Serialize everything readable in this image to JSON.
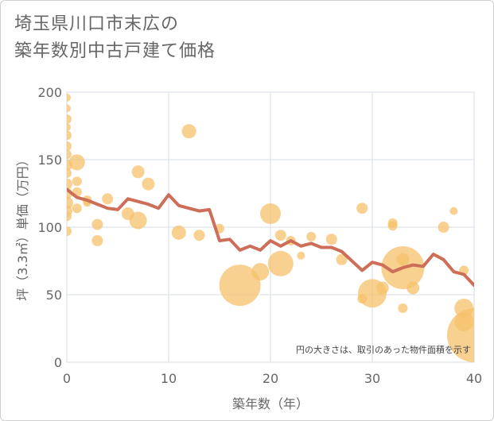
{
  "title_lines": [
    "埼玉県川口市末広の",
    "築年数別中古戸建て価格"
  ],
  "chart_data": {
    "type": "scatter",
    "title": "埼玉県川口市末広の築年数別中古戸建て価格",
    "xlabel": "築年数（年）",
    "ylabel": "坪（3.3㎡）単価（万円）",
    "xlim": [
      0,
      40
    ],
    "ylim": [
      0,
      200
    ],
    "x_ticks": [
      0,
      10,
      20,
      30,
      40
    ],
    "y_ticks": [
      0,
      50,
      100,
      150,
      200
    ],
    "grid": true,
    "annotation": "円の大きさは、取引のあった物件面積を示す",
    "bubble_color": "#f5c16c",
    "line_color": "#cd6e58",
    "points": [
      {
        "x": 0,
        "y": 196,
        "s": 5
      },
      {
        "x": 0,
        "y": 188,
        "s": 5
      },
      {
        "x": 0,
        "y": 180,
        "s": 6
      },
      {
        "x": 0,
        "y": 174,
        "s": 5
      },
      {
        "x": 0,
        "y": 168,
        "s": 6
      },
      {
        "x": 0,
        "y": 160,
        "s": 6
      },
      {
        "x": 0,
        "y": 154,
        "s": 6
      },
      {
        "x": 0,
        "y": 146,
        "s": 7
      },
      {
        "x": 0,
        "y": 140,
        "s": 6
      },
      {
        "x": 0,
        "y": 132,
        "s": 7
      },
      {
        "x": 0,
        "y": 125,
        "s": 7
      },
      {
        "x": 0,
        "y": 118,
        "s": 8
      },
      {
        "x": 0,
        "y": 112,
        "s": 7
      },
      {
        "x": 0,
        "y": 108,
        "s": 6
      },
      {
        "x": 0,
        "y": 97,
        "s": 6
      },
      {
        "x": 1,
        "y": 148,
        "s": 10
      },
      {
        "x": 1,
        "y": 134,
        "s": 6
      },
      {
        "x": 1,
        "y": 126,
        "s": 6
      },
      {
        "x": 1,
        "y": 114,
        "s": 6
      },
      {
        "x": 2,
        "y": 120,
        "s": 6
      },
      {
        "x": 2,
        "y": 118,
        "s": 5
      },
      {
        "x": 3,
        "y": 102,
        "s": 7
      },
      {
        "x": 3,
        "y": 90,
        "s": 7
      },
      {
        "x": 4,
        "y": 121,
        "s": 7
      },
      {
        "x": 6,
        "y": 110,
        "s": 8
      },
      {
        "x": 7,
        "y": 141,
        "s": 8
      },
      {
        "x": 7,
        "y": 105,
        "s": 11
      },
      {
        "x": 8,
        "y": 132,
        "s": 8
      },
      {
        "x": 11,
        "y": 96,
        "s": 9
      },
      {
        "x": 12,
        "y": 171,
        "s": 9
      },
      {
        "x": 13,
        "y": 94,
        "s": 7
      },
      {
        "x": 15,
        "y": 99,
        "s": 6
      },
      {
        "x": 17,
        "y": 57,
        "s": 26
      },
      {
        "x": 19,
        "y": 67,
        "s": 11
      },
      {
        "x": 20,
        "y": 110,
        "s": 13
      },
      {
        "x": 21,
        "y": 94,
        "s": 7
      },
      {
        "x": 21,
        "y": 73,
        "s": 16
      },
      {
        "x": 22,
        "y": 90,
        "s": 6
      },
      {
        "x": 23,
        "y": 79,
        "s": 5
      },
      {
        "x": 24,
        "y": 93,
        "s": 6
      },
      {
        "x": 26,
        "y": 91,
        "s": 7
      },
      {
        "x": 27,
        "y": 76,
        "s": 7
      },
      {
        "x": 29,
        "y": 114,
        "s": 7
      },
      {
        "x": 29,
        "y": 47,
        "s": 6
      },
      {
        "x": 30,
        "y": 51,
        "s": 18
      },
      {
        "x": 31,
        "y": 55,
        "s": 8
      },
      {
        "x": 32,
        "y": 103,
        "s": 6
      },
      {
        "x": 32,
        "y": 101,
        "s": 6
      },
      {
        "x": 33,
        "y": 70,
        "s": 27
      },
      {
        "x": 33,
        "y": 76,
        "s": 8
      },
      {
        "x": 33,
        "y": 40,
        "s": 6
      },
      {
        "x": 34,
        "y": 55,
        "s": 8
      },
      {
        "x": 37,
        "y": 100,
        "s": 7
      },
      {
        "x": 38,
        "y": 112,
        "s": 5
      },
      {
        "x": 39,
        "y": 68,
        "s": 6
      },
      {
        "x": 39,
        "y": 40,
        "s": 12
      },
      {
        "x": 39,
        "y": 30,
        "s": 12
      },
      {
        "x": 40,
        "y": 20,
        "s": 34
      }
    ],
    "trend_line": {
      "x": [
        0,
        1,
        2,
        3,
        4,
        5,
        6,
        7,
        8,
        9,
        10,
        11,
        12,
        13,
        14,
        15,
        16,
        17,
        18,
        19,
        20,
        21,
        22,
        23,
        24,
        25,
        26,
        27,
        28,
        29,
        30,
        31,
        32,
        33,
        34,
        35,
        36,
        37,
        38,
        39,
        40
      ],
      "y": [
        128,
        122,
        120,
        117,
        114,
        113,
        121,
        119,
        117,
        114,
        124,
        116,
        114,
        112,
        113,
        90,
        91,
        83,
        86,
        83,
        90,
        86,
        90,
        86,
        88,
        85,
        85,
        82,
        75,
        68,
        74,
        72,
        67,
        70,
        72,
        71,
        80,
        76,
        67,
        65,
        57
      ]
    }
  }
}
